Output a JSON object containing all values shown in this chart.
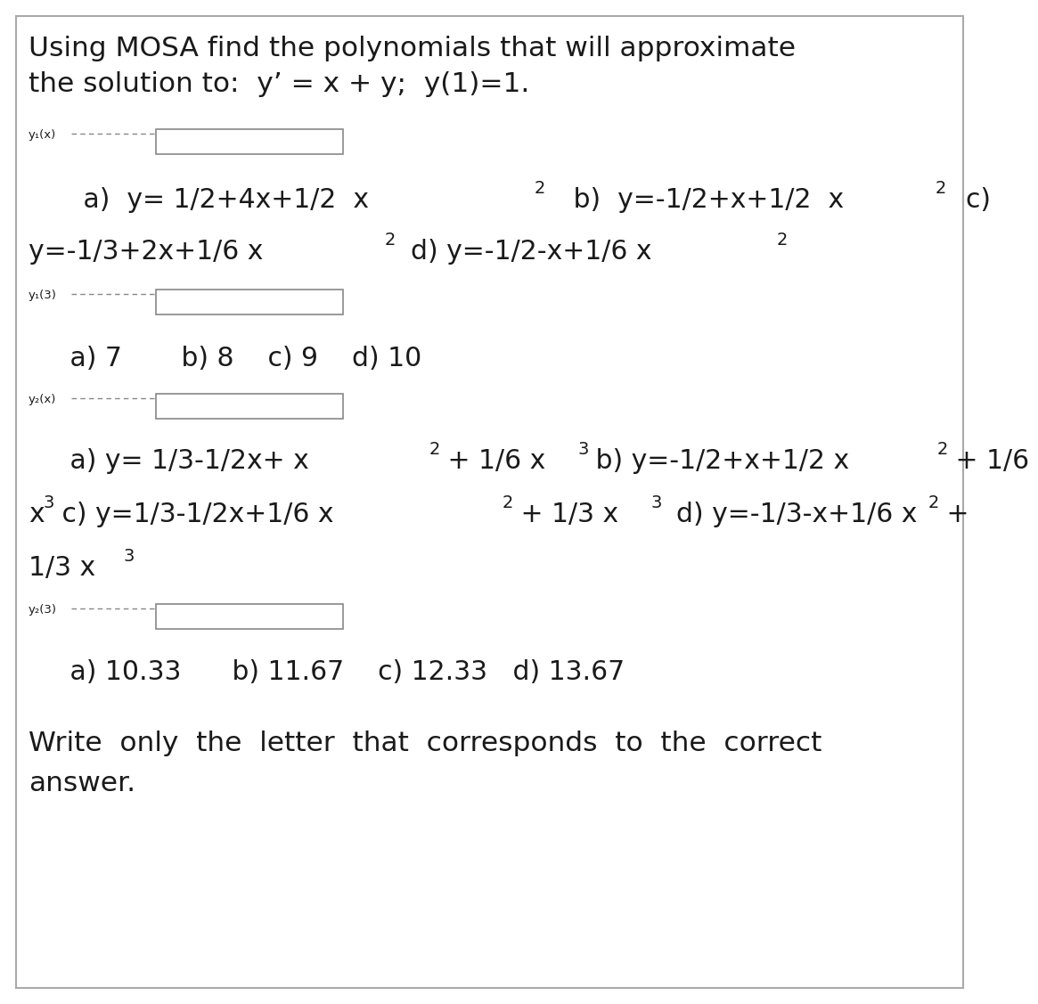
{
  "bg_color": "#ffffff",
  "text_color": "#1a1a1a",
  "title_line1": "Using MOSA find the polynomials that will approximate",
  "title_line2": "the solution to:  y’ = x + y;  y(1)=1.",
  "label_y1x": "y₁(x)",
  "label_y13": "y₁(3)",
  "label_y2x": "y₂(x)",
  "label_y23": "y₂(3)",
  "y1x_line1_a": "   a)  y= 1/2+4x+1/2  x",
  "y1x_line1_b": "   b)  y=-1/2+x+1/2  x",
  "y1x_line1_c": "  c)",
  "y1x_line2_c": "y=-1/3+2x+1/6 x",
  "y1x_line2_d": "  d) y=-1/2-x+1/6 x",
  "y13_choices": "   a) 7       b) 8    c) 9    d) 10",
  "y2x_line1_a": "   a) y= 1/3-1/2x+ x",
  "y2x_line1_b1": " + 1/6 x",
  "y2x_line1_b2": " b) y=-1/2+x+1/2 x",
  "y2x_line1_b3": " + 1/6",
  "y2x_line2_x": "x",
  "y2x_line2_c1": " c) y=1/3-1/2x+1/6 x",
  "y2x_line2_c2": " + 1/3 x",
  "y2x_line2_d1": "  d) y=-1/3-x+1/6 x",
  "y2x_line2_d2": " +",
  "y2x_line3": "1/3 x",
  "y23_choices": "   a) 10.33      b) 11.67    c) 12.33   d) 13.67",
  "footer_line1": "Write  only  the  letter  that  corresponds  to  the  correct",
  "footer_line2": "answer.",
  "fs_title": 22.5,
  "fs_choice": 21.5,
  "fs_label": 9.5,
  "fs_super": 14,
  "fs_footer": 22.5
}
